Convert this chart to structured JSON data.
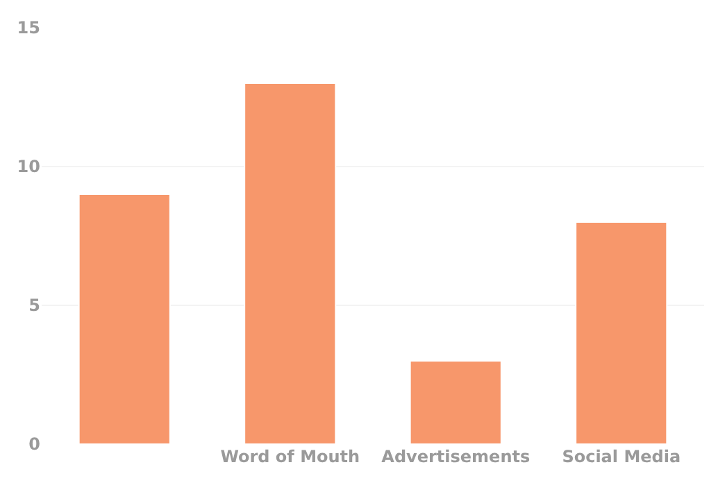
{
  "chart_data": {
    "type": "bar",
    "categories": [
      null,
      "Word of Mouth",
      "Advertisements",
      "Social Media"
    ],
    "values": [
      9,
      13,
      3,
      8
    ],
    "color": "#f7976b",
    "ylim": [
      0,
      15
    ],
    "yticks": [
      0,
      5,
      10,
      15
    ],
    "grid": "y"
  }
}
